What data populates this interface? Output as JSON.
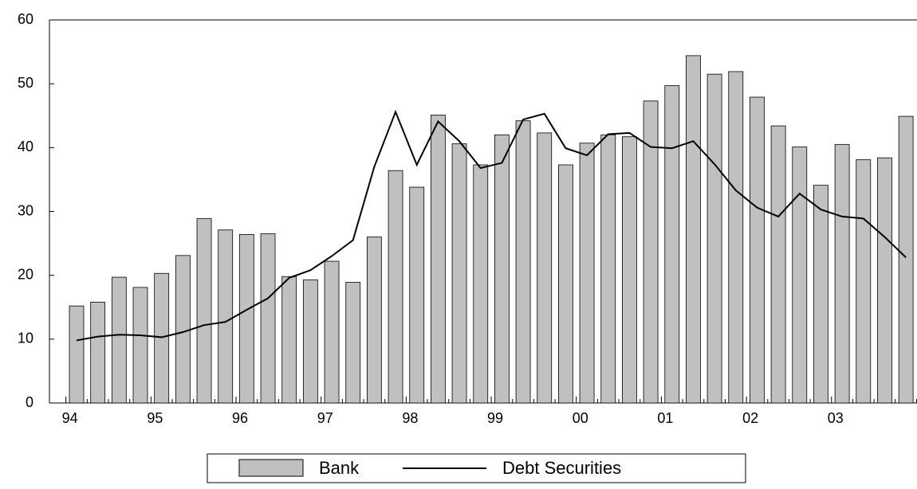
{
  "chart_data": {
    "type": "bar-line",
    "categories": [
      "94",
      null,
      null,
      null,
      "95",
      null,
      null,
      null,
      "96",
      null,
      null,
      null,
      "97",
      null,
      null,
      null,
      "98",
      null,
      null,
      null,
      "99",
      null,
      null,
      null,
      "00",
      null,
      null,
      null,
      "01",
      null,
      null,
      null,
      "02",
      null,
      null,
      null,
      "03",
      null,
      null,
      null
    ],
    "series": [
      {
        "name": "Bank",
        "type": "bar",
        "color": "#c0c0c0",
        "values": [
          15.2,
          15.8,
          19.7,
          18.1,
          20.3,
          23.1,
          28.9,
          27.1,
          26.4,
          26.5,
          19.8,
          19.3,
          22.2,
          18.9,
          26.0,
          36.4,
          33.8,
          45.1,
          40.6,
          37.3,
          42.0,
          44.2,
          42.3,
          37.3,
          40.7,
          42.0,
          41.7,
          47.3,
          49.7,
          54.4,
          51.5,
          51.9,
          47.9,
          43.4,
          40.1,
          34.1,
          40.5,
          38.1,
          38.4,
          44.9
        ]
      },
      {
        "name": "Debt Securities",
        "type": "line",
        "color": "#000000",
        "values": [
          9.8,
          10.4,
          10.7,
          10.6,
          10.3,
          11.1,
          12.2,
          12.7,
          14.6,
          16.4,
          19.6,
          20.8,
          23.0,
          25.5,
          37.0,
          45.6,
          37.3,
          44.1,
          41.0,
          36.8,
          37.6,
          44.4,
          45.3,
          39.9,
          38.8,
          42.1,
          42.3,
          40.1,
          39.9,
          41.0,
          37.4,
          33.3,
          30.6,
          29.2,
          32.8,
          30.3,
          29.2,
          28.9,
          26.0,
          22.8
        ]
      }
    ],
    "ylim": [
      0,
      60
    ],
    "yticks": [
      0,
      10,
      20,
      30,
      40,
      50,
      60
    ],
    "legend": "bottom"
  }
}
